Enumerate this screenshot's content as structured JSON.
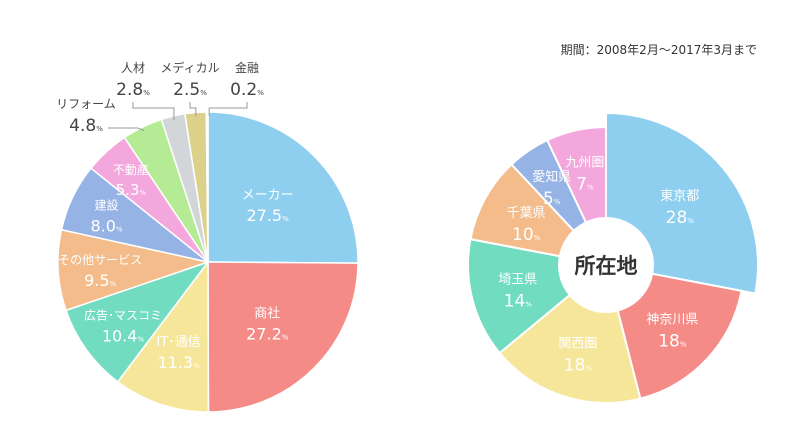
{
  "period_note": "期間：2008年2月～2017年3月まで",
  "chart_data": [
    {
      "type": "pie",
      "title": "",
      "unit": "%",
      "slices": [
        {
          "label": "メーカー",
          "value": 27.5,
          "display": "27.5",
          "color": "#8ecff0"
        },
        {
          "label": "商社",
          "value": 27.2,
          "display": "27.2",
          "color": "#f48b86"
        },
        {
          "label": "IT･通信",
          "value": 11.3,
          "display": "11.3",
          "color": "#f6e69a"
        },
        {
          "label": "広告･マスコミ",
          "value": 10.4,
          "display": "10.4",
          "color": "#72dcc0"
        },
        {
          "label": "その他サービス",
          "value": 9.5,
          "display": "9.5",
          "color": "#f3bc8a"
        },
        {
          "label": "建設",
          "value": 8.0,
          "display": "8.0",
          "color": "#95b3e5"
        },
        {
          "label": "不動産",
          "value": 5.3,
          "display": "5.3",
          "color": "#f3a7dc"
        },
        {
          "label": "リフォーム",
          "value": 4.8,
          "display": "4.8",
          "color": "#b6eb96"
        },
        {
          "label": "人材",
          "value": 2.8,
          "display": "2.8",
          "color": "#d3d6d9"
        },
        {
          "label": "メディカル",
          "value": 2.5,
          "display": "2.5",
          "color": "#dbd18b"
        },
        {
          "label": "金融",
          "value": 0.2,
          "display": "0.2",
          "color": "#e5e5e5"
        }
      ]
    },
    {
      "type": "pie",
      "title": "所在地",
      "unit": "%",
      "slices": [
        {
          "label": "東京都",
          "value": 28,
          "display": "28",
          "color": "#8ecff0"
        },
        {
          "label": "神奈川県",
          "value": 18,
          "display": "18",
          "color": "#f48b86"
        },
        {
          "label": "関西圏",
          "value": 18,
          "display": "18",
          "color": "#f6e69a"
        },
        {
          "label": "埼玉県",
          "value": 14,
          "display": "14",
          "color": "#72dcc0"
        },
        {
          "label": "千葉県",
          "value": 10,
          "display": "10",
          "color": "#f3bc8a"
        },
        {
          "label": "愛知県",
          "value": 5,
          "display": "5",
          "color": "#95b3e5"
        },
        {
          "label": "九州圏",
          "value": 7,
          "display": "7",
          "color": "#f3a7dc"
        }
      ]
    }
  ]
}
